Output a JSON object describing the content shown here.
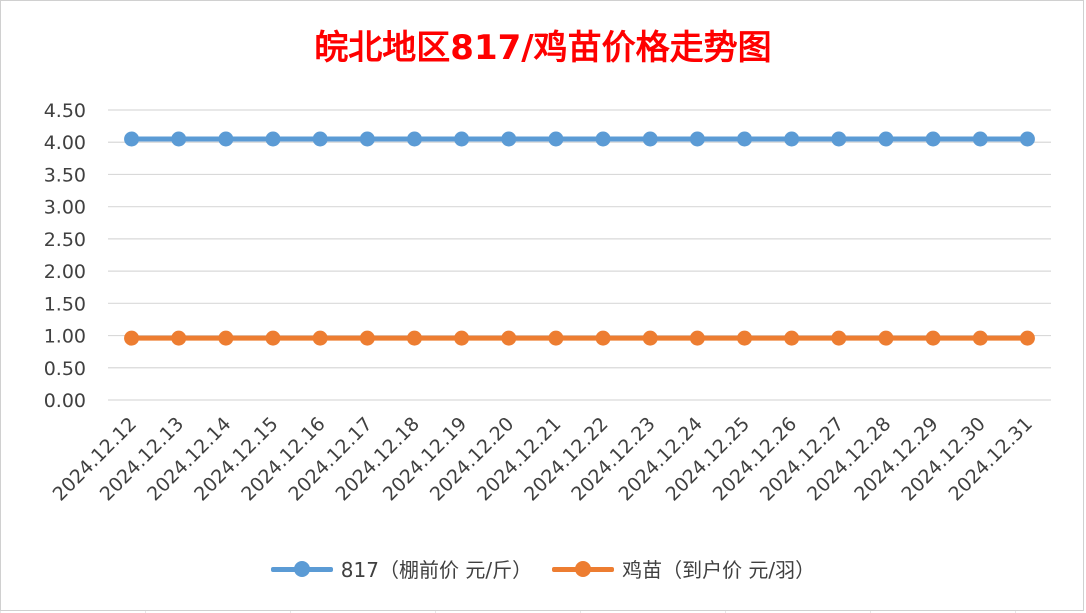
{
  "chart_data": {
    "type": "line",
    "title": "皖北地区817/鸡苗价格走势图",
    "categories": [
      "2024.12.12",
      "2024.12.13",
      "2024.12.14",
      "2024.12.15",
      "2024.12.16",
      "2024.12.17",
      "2024.12.18",
      "2024.12.19",
      "2024.12.20",
      "2024.12.21",
      "2024.12.22",
      "2024.12.23",
      "2024.12.24",
      "2024.12.25",
      "2024.12.26",
      "2024.12.27",
      "2024.12.28",
      "2024.12.29",
      "2024.12.30",
      "2024.12.31"
    ],
    "y_ticks": [
      "0.00",
      "0.50",
      "1.00",
      "1.50",
      "2.00",
      "2.50",
      "3.00",
      "3.50",
      "4.00",
      "4.50"
    ],
    "ylim": [
      0,
      4.5
    ],
    "grid": true,
    "legend_position": "bottom",
    "series": [
      {
        "name": "817（棚前价 元/斤）",
        "color": "#5b9bd5",
        "values": [
          4.05,
          4.05,
          4.05,
          4.05,
          4.05,
          4.05,
          4.05,
          4.05,
          4.05,
          4.05,
          4.05,
          4.05,
          4.05,
          4.05,
          4.05,
          4.05,
          4.05,
          4.05,
          4.05,
          4.05
        ]
      },
      {
        "name": "鸡苗（到户价 元/羽）",
        "color": "#ed7d31",
        "values": [
          0.96,
          0.96,
          0.96,
          0.96,
          0.96,
          0.96,
          0.96,
          0.96,
          0.96,
          0.96,
          0.96,
          0.96,
          0.96,
          0.96,
          0.96,
          0.96,
          0.96,
          0.96,
          0.96,
          0.96
        ]
      }
    ]
  }
}
